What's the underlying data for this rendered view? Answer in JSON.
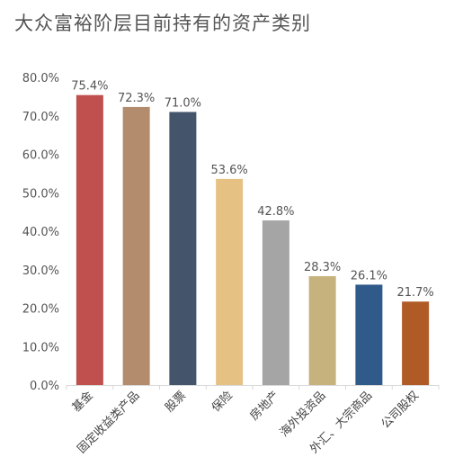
{
  "chart_data": {
    "type": "bar",
    "title": "大众富裕阶层目前持有的资产类别",
    "categories": [
      "基金",
      "固定收益类产品",
      "股票",
      "保险",
      "房地产",
      "海外投资品",
      "外汇、大宗商品",
      "公司股权"
    ],
    "values": [
      75.4,
      72.3,
      71.0,
      53.6,
      42.8,
      28.3,
      26.1,
      21.7
    ],
    "value_labels": [
      "75.4%",
      "72.3%",
      "71.0%",
      "53.6%",
      "42.8%",
      "28.3%",
      "26.1%",
      "21.7%"
    ],
    "colors": [
      "#C0504D",
      "#B38B6D",
      "#44546A",
      "#E5C284",
      "#A5A5A5",
      "#C6B27C",
      "#2F5A8A",
      "#B05A26"
    ],
    "ylim": [
      0,
      80
    ],
    "yticks": [
      "0.0%",
      "10.0%",
      "20.0%",
      "30.0%",
      "40.0%",
      "50.0%",
      "60.0%",
      "70.0%",
      "80.0%"
    ],
    "xlabel": "",
    "ylabel": "",
    "grid": false,
    "legend": "none"
  }
}
